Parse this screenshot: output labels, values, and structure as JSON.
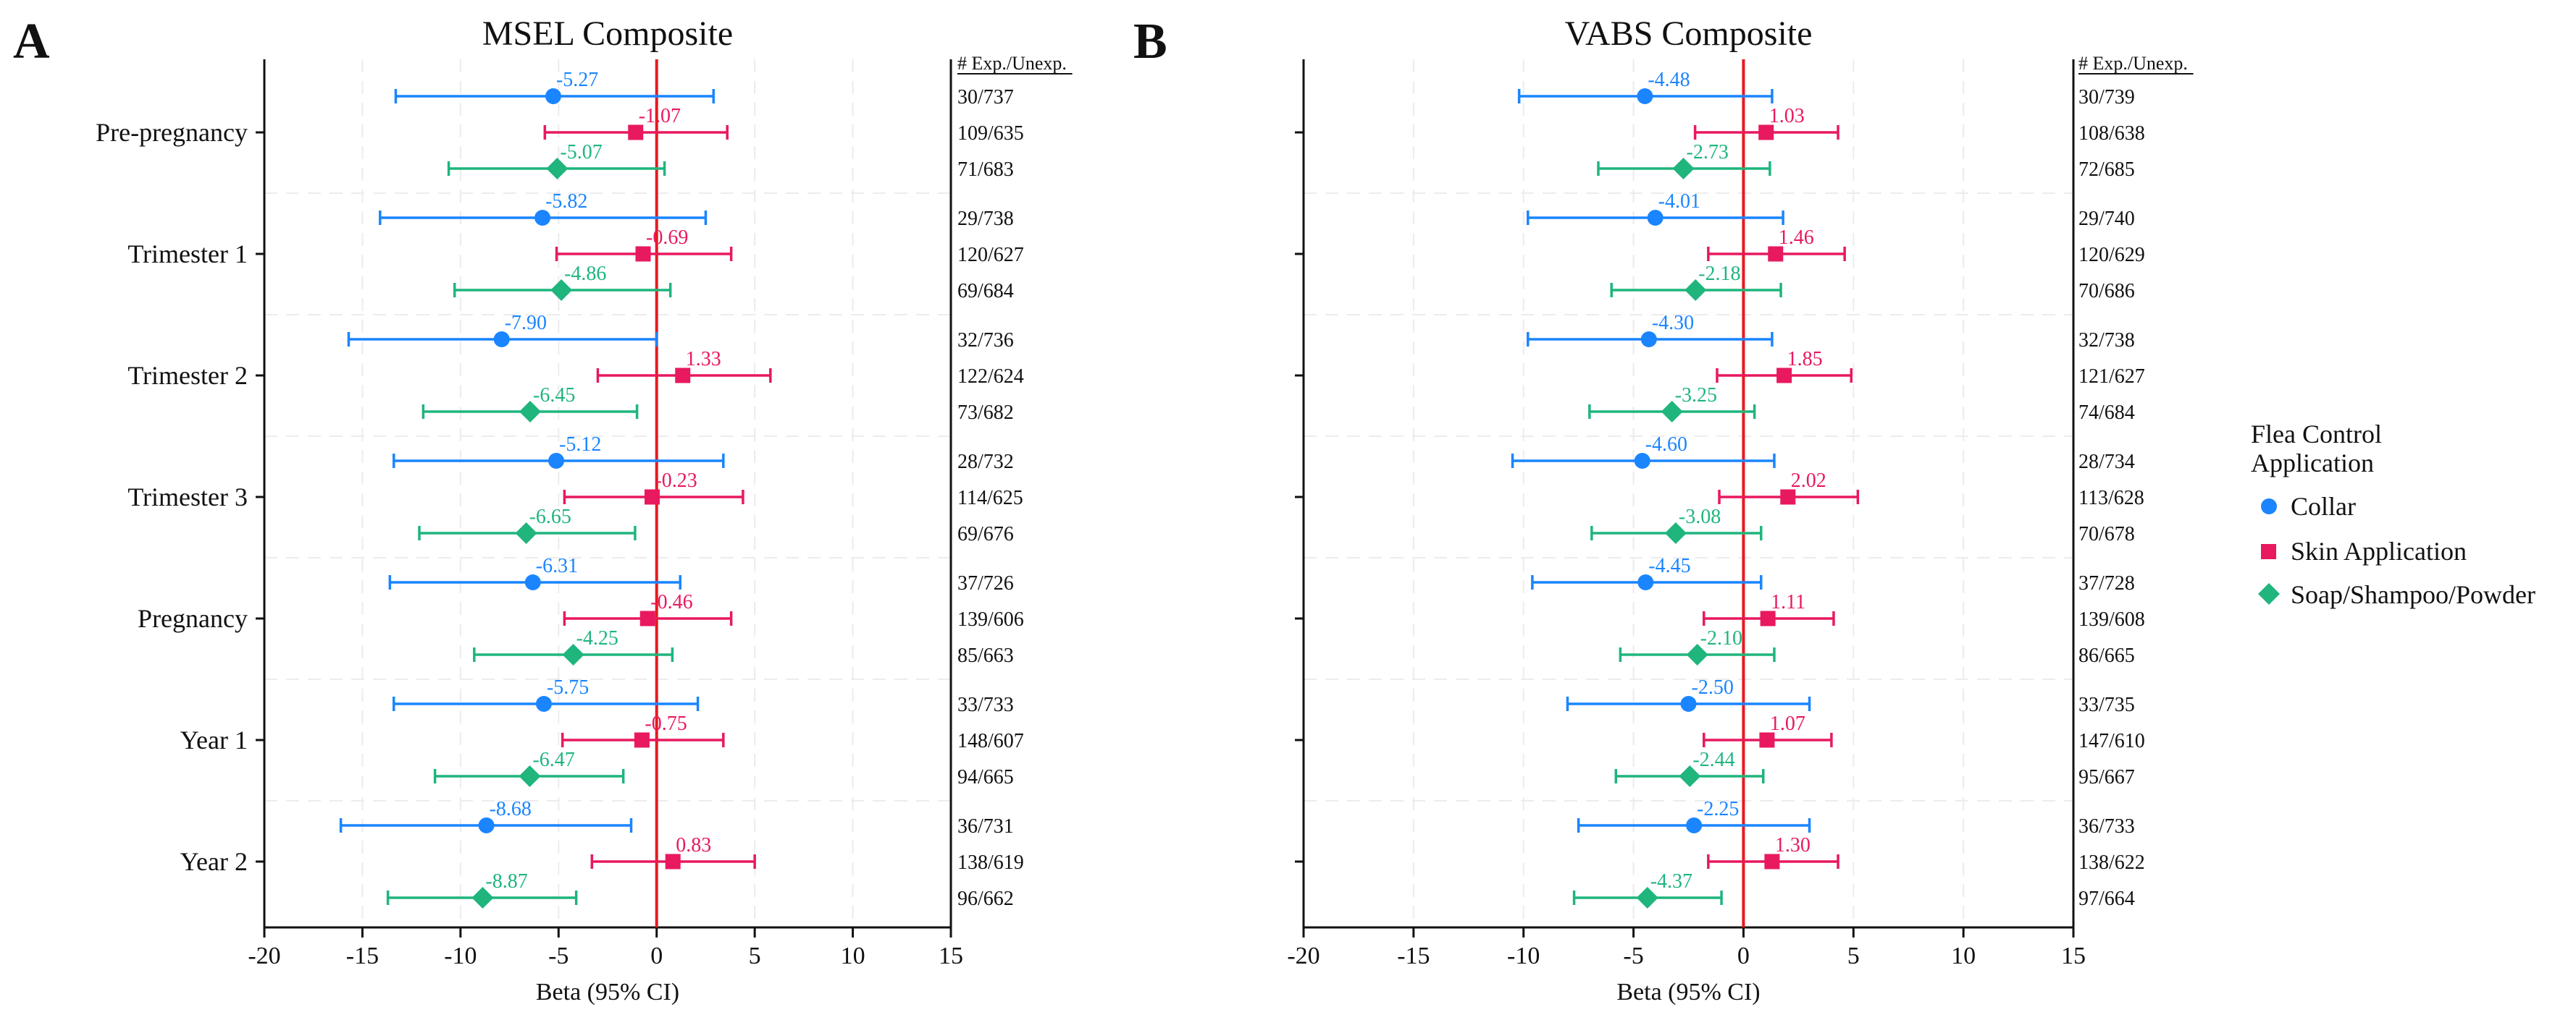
{
  "legend": {
    "title": "Flea Control Application",
    "placement": "right",
    "items": [
      {
        "label": "Collar",
        "color": "#1a85ff",
        "shape": "circle"
      },
      {
        "label": "Skin Application",
        "color": "#e8195f",
        "shape": "square"
      },
      {
        "label": "Soap/Shampoo/Powder",
        "color": "#1fb57d",
        "shape": "diamond"
      }
    ]
  },
  "colors": {
    "zero_line": "#e8191e",
    "axis": "#111111",
    "grid": "#ececec"
  },
  "chart_data": [
    {
      "panel_label": "A",
      "type": "forest",
      "title": "MSEL Composite",
      "xlabel": "Beta (95% CI)",
      "xlim": [
        -20,
        15
      ],
      "xticks": [
        -20,
        -15,
        -10,
        -5,
        0,
        5,
        10,
        15
      ],
      "grid": true,
      "counts_header": "# Exp./Unexp.",
      "groups": [
        "Pre-pregnancy",
        "Trimester 1",
        "Trimester 2",
        "Trimester 3",
        "Pregnancy",
        "Year 1",
        "Year 2"
      ],
      "series": [
        {
          "name": "Collar",
          "estimates": [
            -5.27,
            -5.82,
            -7.9,
            -5.12,
            -6.31,
            -5.75,
            -8.68
          ],
          "lower": [
            -13.3,
            -14.1,
            -15.7,
            -13.4,
            -13.6,
            -13.4,
            -16.1
          ],
          "upper": [
            2.9,
            2.5,
            0.0,
            3.4,
            1.2,
            2.1,
            -1.3
          ],
          "counts": [
            "30/737",
            "29/738",
            "32/736",
            "28/732",
            "37/726",
            "33/733",
            "36/731"
          ]
        },
        {
          "name": "Skin Application",
          "estimates": [
            -1.07,
            -0.69,
            1.33,
            -0.23,
            -0.46,
            -0.75,
            0.83
          ],
          "lower": [
            -5.7,
            -5.1,
            -3.0,
            -4.7,
            -4.7,
            -4.8,
            -3.3
          ],
          "upper": [
            3.6,
            3.8,
            5.8,
            4.4,
            3.8,
            3.4,
            5.0
          ],
          "counts": [
            "109/635",
            "120/627",
            "122/624",
            "114/625",
            "139/606",
            "148/607",
            "138/619"
          ]
        },
        {
          "name": "Soap/Shampoo/Powder",
          "estimates": [
            -5.07,
            -4.86,
            -6.45,
            -6.65,
            -4.25,
            -6.47,
            -8.87
          ],
          "lower": [
            -10.6,
            -10.3,
            -11.9,
            -12.1,
            -9.3,
            -11.3,
            -13.7
          ],
          "upper": [
            0.4,
            0.7,
            -1.0,
            -1.1,
            0.8,
            -1.7,
            -4.1
          ],
          "counts": [
            "71/683",
            "69/684",
            "73/682",
            "69/676",
            "85/663",
            "94/665",
            "96/662"
          ]
        }
      ]
    },
    {
      "panel_label": "B",
      "type": "forest",
      "title": "VABS Composite",
      "xlabel": "Beta (95% CI)",
      "xlim": [
        -20,
        15
      ],
      "xticks": [
        -20,
        -15,
        -10,
        -5,
        0,
        5,
        10,
        15
      ],
      "grid": true,
      "counts_header": "# Exp./Unexp.",
      "groups": [
        "Pre-pregnancy",
        "Trimester 1",
        "Trimester 2",
        "Trimester 3",
        "Pregnancy",
        "Year 1",
        "Year 2"
      ],
      "series": [
        {
          "name": "Collar",
          "estimates": [
            -4.48,
            -4.01,
            -4.3,
            -4.6,
            -4.45,
            -2.5,
            -2.25
          ],
          "lower": [
            -10.2,
            -9.8,
            -9.8,
            -10.5,
            -9.6,
            -8.0,
            -7.5
          ],
          "upper": [
            1.3,
            1.8,
            1.3,
            1.4,
            0.8,
            3.0,
            3.0
          ],
          "counts": [
            "30/739",
            "29/740",
            "32/738",
            "28/734",
            "37/728",
            "33/735",
            "36/733"
          ]
        },
        {
          "name": "Skin Application",
          "estimates": [
            1.03,
            1.46,
            1.85,
            2.02,
            1.11,
            1.07,
            1.3
          ],
          "lower": [
            -2.2,
            -1.6,
            -1.2,
            -1.1,
            -1.8,
            -1.8,
            -1.6
          ],
          "upper": [
            4.3,
            4.6,
            4.9,
            5.2,
            4.1,
            4.0,
            4.3
          ],
          "counts": [
            "108/638",
            "120/629",
            "121/627",
            "113/628",
            "139/608",
            "147/610",
            "138/622"
          ]
        },
        {
          "name": "Soap/Shampoo/Powder",
          "estimates": [
            -2.73,
            -2.18,
            -3.25,
            -3.08,
            -2.1,
            -2.44,
            -4.37
          ],
          "lower": [
            -6.6,
            -6.0,
            -7.0,
            -6.9,
            -5.6,
            -5.8,
            -7.7
          ],
          "upper": [
            1.2,
            1.7,
            0.5,
            0.8,
            1.4,
            0.9,
            -1.0
          ],
          "counts": [
            "72/685",
            "70/686",
            "74/684",
            "70/678",
            "86/665",
            "95/667",
            "97/664"
          ]
        }
      ]
    }
  ]
}
